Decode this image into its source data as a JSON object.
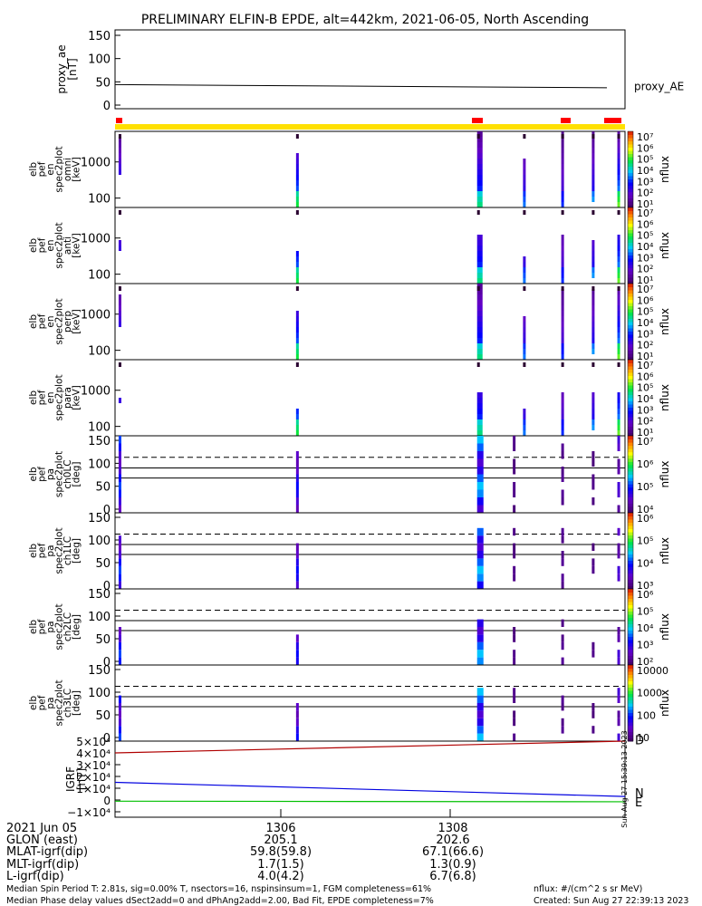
{
  "title": "PRELIMINARY ELFIN-B EPDE, alt=442km, 2021-06-05, North Ascending",
  "panels": [
    {
      "ylabel": [
        "proxy_ae",
        "[nT]"
      ],
      "yticks": [
        "150",
        "100",
        "50",
        "0"
      ],
      "right_label": "proxy_AE",
      "kind": "line"
    },
    {
      "ylabel": [
        "elb",
        "pef",
        "en",
        "spec2plot",
        "omni",
        "[keV]"
      ],
      "yticks": [
        "1000",
        "100"
      ],
      "kind": "spec_energy"
    },
    {
      "ylabel": [
        "elb",
        "pef",
        "en",
        "spec2plot",
        "anti",
        "[keV]"
      ],
      "yticks": [
        "1000",
        "100"
      ],
      "kind": "spec_energy"
    },
    {
      "ylabel": [
        "elb",
        "pef",
        "en",
        "spec2plot",
        "perp",
        "[keV]"
      ],
      "yticks": [
        "1000",
        "100"
      ],
      "kind": "spec_energy"
    },
    {
      "ylabel": [
        "elb",
        "pef",
        "en",
        "spec2plot",
        "para",
        "[keV]"
      ],
      "yticks": [
        "1000",
        "100"
      ],
      "kind": "spec_energy"
    },
    {
      "ylabel": [
        "elb",
        "pef",
        "pa",
        "spec2plot",
        "ch0LC",
        "[deg]"
      ],
      "yticks": [
        "150",
        "100",
        "50",
        "0"
      ],
      "kind": "spec_pa"
    },
    {
      "ylabel": [
        "elb",
        "pef",
        "pa",
        "spec2plot",
        "ch1LC",
        "[deg]"
      ],
      "yticks": [
        "150",
        "100",
        "50",
        "0"
      ],
      "kind": "spec_pa"
    },
    {
      "ylabel": [
        "elb",
        "pef",
        "pa",
        "spec2plot",
        "ch2LC",
        "[deg]"
      ],
      "yticks": [
        "150",
        "100",
        "50",
        "0"
      ],
      "kind": "spec_pa"
    },
    {
      "ylabel": [
        "elb",
        "pef",
        "pa",
        "spec2plot",
        "ch3LC",
        "[deg]"
      ],
      "yticks": [
        "150",
        "100",
        "50",
        "0"
      ],
      "kind": "spec_pa"
    },
    {
      "ylabel": [
        "IGRF",
        "[nT]"
      ],
      "yticks": [
        "5×10⁴",
        "4×10⁴",
        "3×10⁴",
        "2×10⁴",
        "1×10⁴",
        "0",
        "−1×10⁴"
      ],
      "kind": "igrf"
    }
  ],
  "colorbars": [
    {
      "label": "nflux",
      "ticks": [
        "10⁷",
        "10⁶",
        "10⁵",
        "10⁴",
        "10³",
        "10²",
        "10¹"
      ]
    },
    {
      "label": "nflux",
      "ticks": [
        "10⁷",
        "10⁶",
        "10⁵",
        "10⁴",
        "10³",
        "10²",
        "10¹"
      ]
    },
    {
      "label": "nflux",
      "ticks": [
        "10⁷",
        "10⁶",
        "10⁵",
        "10⁴",
        "10³",
        "10²",
        "10¹"
      ]
    },
    {
      "label": "nflux",
      "ticks": [
        "10⁷",
        "10⁶",
        "10⁵",
        "10⁴",
        "10³",
        "10²",
        "10¹"
      ]
    },
    {
      "label": "nflux",
      "ticks": [
        "10⁷",
        "10⁶",
        "10⁵",
        "10⁴"
      ]
    },
    {
      "label": "nflux",
      "ticks": [
        "10⁶",
        "10⁵",
        "10⁴",
        "10³"
      ]
    },
    {
      "label": "nflux",
      "ticks": [
        "10⁶",
        "10⁵",
        "10⁴",
        "10³",
        "10²"
      ]
    },
    {
      "label": "nflux",
      "ticks": [
        "10000",
        "1000",
        "100",
        "10"
      ]
    }
  ],
  "igrf_legend": [
    "D",
    "N",
    "E"
  ],
  "igrf_colors": {
    "D": "#b00000",
    "N": "#0000e0",
    "E": "#00c000"
  },
  "side_stamp": "Sun Aug 27 15:39:13 2023",
  "footer": {
    "rows": [
      {
        "label": "2021 Jun 05",
        "v1": "1306",
        "v2": "1308"
      },
      {
        "label": "GLON (east)",
        "v1": "205.1",
        "v2": "202.6"
      },
      {
        "label": "MLAT-igrf(dip)",
        "v1": "59.8(59.8)",
        "v2": "67.1(66.6)"
      },
      {
        "label": "MLT-igrf(dip)",
        "v1": "1.7(1.5)",
        "v2": "1.3(0.9)"
      },
      {
        "label": "L-igrf(dip)",
        "v1": "4.0(4.2)",
        "v2": "6.7(6.8)"
      }
    ],
    "note1": "Median Spin Period T: 2.81s, sig=0.00% T, nsectors=16, nspinsinsum=1, FGM completeness=61%",
    "note2": "Median Phase delay values dSect2add=0 and dPhAng2add=2.00, Bad Fit, EPDE completeness=7%",
    "unit_note": "nflux: #/(cm^2 s sr MeV)",
    "created": "Created: Sun Aug 27 22:39:13 2023"
  },
  "chart_data": {
    "type": "heatmap",
    "title": "PRELIMINARY ELFIN-B EPDE, alt=442km, 2021-06-05, North Ascending",
    "x_ticks": [
      "1306",
      "1308"
    ],
    "proxy_ae": {
      "x": [
        0,
        1
      ],
      "values": [
        44,
        37
      ],
      "ylim": [
        0,
        150
      ]
    },
    "igrf": {
      "ylim": [
        -10000,
        50000
      ],
      "series": [
        {
          "name": "D",
          "values": [
            40000,
            50000
          ]
        },
        {
          "name": "N",
          "values": [
            15000,
            3000
          ]
        },
        {
          "name": "E",
          "values": [
            -1000,
            -1500
          ]
        }
      ]
    },
    "pa_reference_lines": {
      "dashed": 113,
      "solid": [
        90,
        68
      ]
    },
    "energy_columns": [
      {
        "x": 0.007,
        "y0": 0.45,
        "y1": 0.85,
        "level": 0.45
      },
      {
        "x": 0.355,
        "y0": 0.0,
        "y1": 0.6,
        "level": 0.55
      },
      {
        "x": 0.71,
        "y0": 0.0,
        "y1": 0.98,
        "level": 0.5
      },
      {
        "x": 0.8,
        "y0": 0.0,
        "y1": 0.55,
        "level": 0.35
      },
      {
        "x": 0.875,
        "y0": 0.05,
        "y1": 0.95,
        "level": 0.3
      },
      {
        "x": 0.935,
        "y0": 0.1,
        "y1": 0.9,
        "level": 0.4
      },
      {
        "x": 0.985,
        "y0": 0.0,
        "y1": 0.95,
        "level": 0.6
      }
    ],
    "pa_columns": [
      {
        "x": 0.007,
        "y0": 0.08,
        "y1": 0.85,
        "level": 0.35
      },
      {
        "x": 0.355,
        "y0": 0.0,
        "y1": 0.7,
        "level": 0.3
      },
      {
        "x": 0.71,
        "y0": 0.02,
        "y1": 0.98,
        "level": 0.45
      },
      {
        "x": 0.78,
        "y0": 0.0,
        "y1": 0.95,
        "level": 0.05
      },
      {
        "x": 0.875,
        "y0": 0.1,
        "y1": 0.95,
        "level": 0.08
      },
      {
        "x": 0.935,
        "y0": 0.15,
        "y1": 0.65,
        "level": 0.05
      },
      {
        "x": 0.985,
        "y0": 0.0,
        "y1": 0.95,
        "level": 0.2
      }
    ]
  }
}
